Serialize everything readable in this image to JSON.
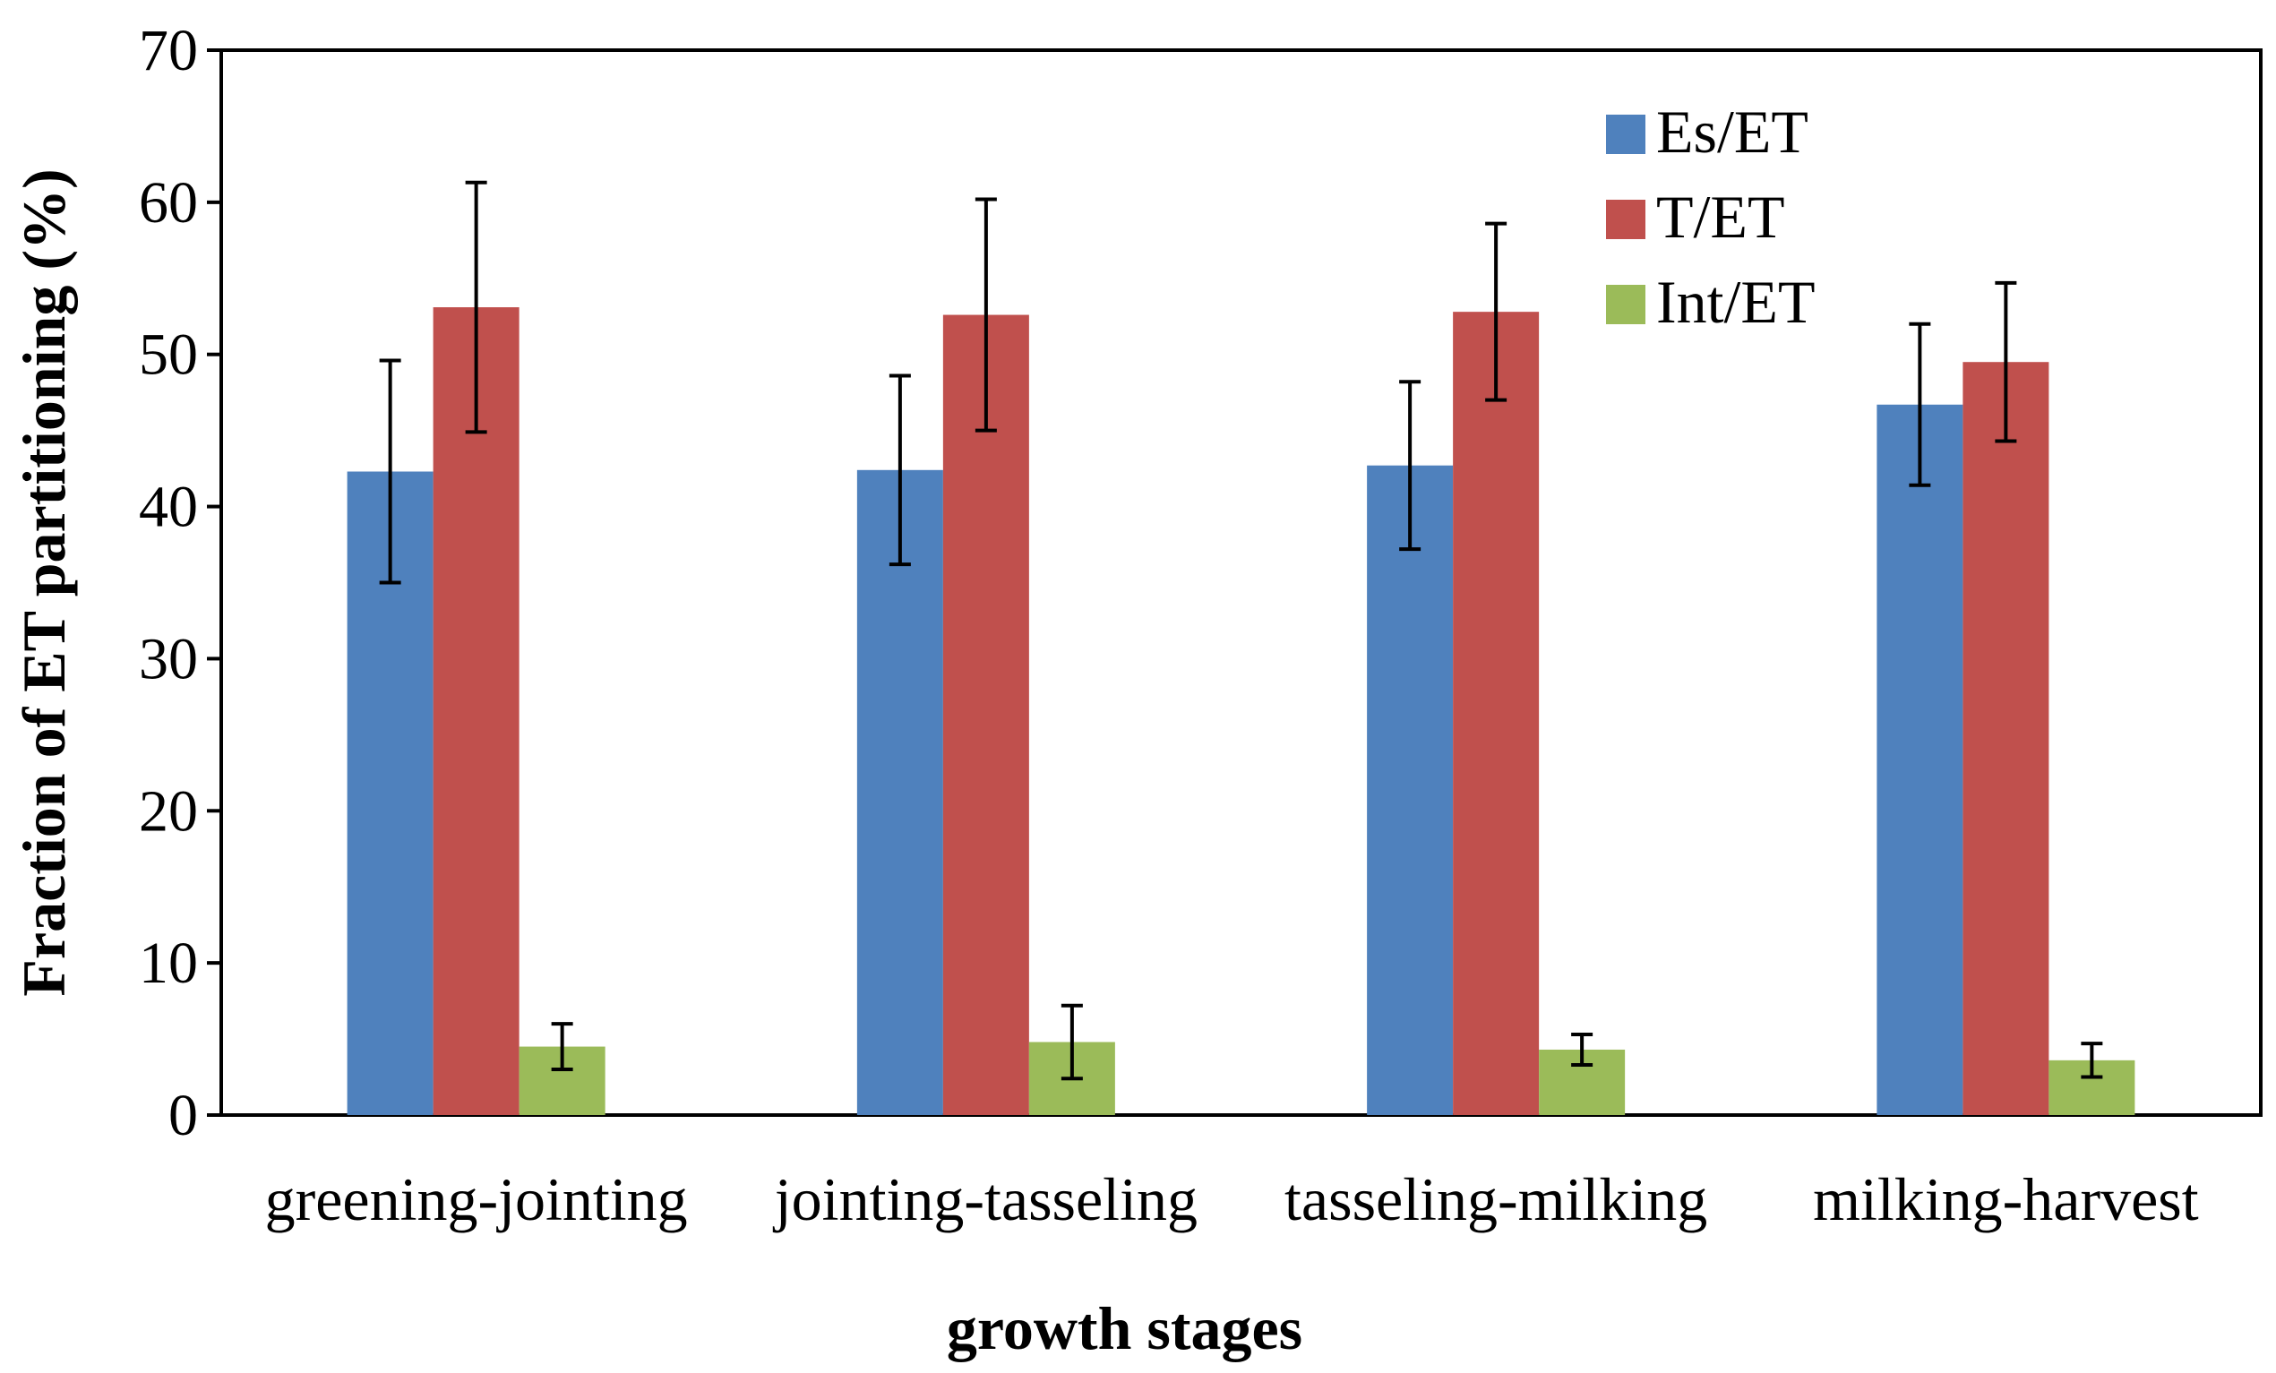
{
  "chart_data": {
    "type": "bar",
    "title": "",
    "xlabel": "growth stages",
    "ylabel": "Fraction of ET partitioning (%)",
    "ylim": [
      0,
      70
    ],
    "yticks": [
      0,
      10,
      20,
      30,
      40,
      50,
      60,
      70
    ],
    "ytick_labels": [
      "0",
      "10",
      "20",
      "30",
      "40",
      "50",
      "60",
      "70"
    ],
    "grid": false,
    "legend_position": "top-right",
    "categories": [
      "greening-jointing",
      "jointing-tasseling",
      "tasseling-milking",
      "milking-harvest"
    ],
    "series": [
      {
        "name": "Es/ET",
        "color": "#4f81bd",
        "values": [
          42.3,
          42.4,
          42.7,
          46.7
        ],
        "error": [
          7.3,
          6.2,
          5.5,
          5.3
        ]
      },
      {
        "name": "T/ET",
        "color": "#c0504d",
        "values": [
          53.1,
          52.6,
          52.8,
          49.5
        ],
        "error": [
          8.2,
          7.6,
          5.8,
          5.2
        ]
      },
      {
        "name": "Int/ET",
        "color": "#9bbb59",
        "values": [
          4.5,
          4.8,
          4.3,
          3.6
        ],
        "error": [
          1.5,
          2.4,
          1.0,
          1.1
        ]
      }
    ]
  }
}
